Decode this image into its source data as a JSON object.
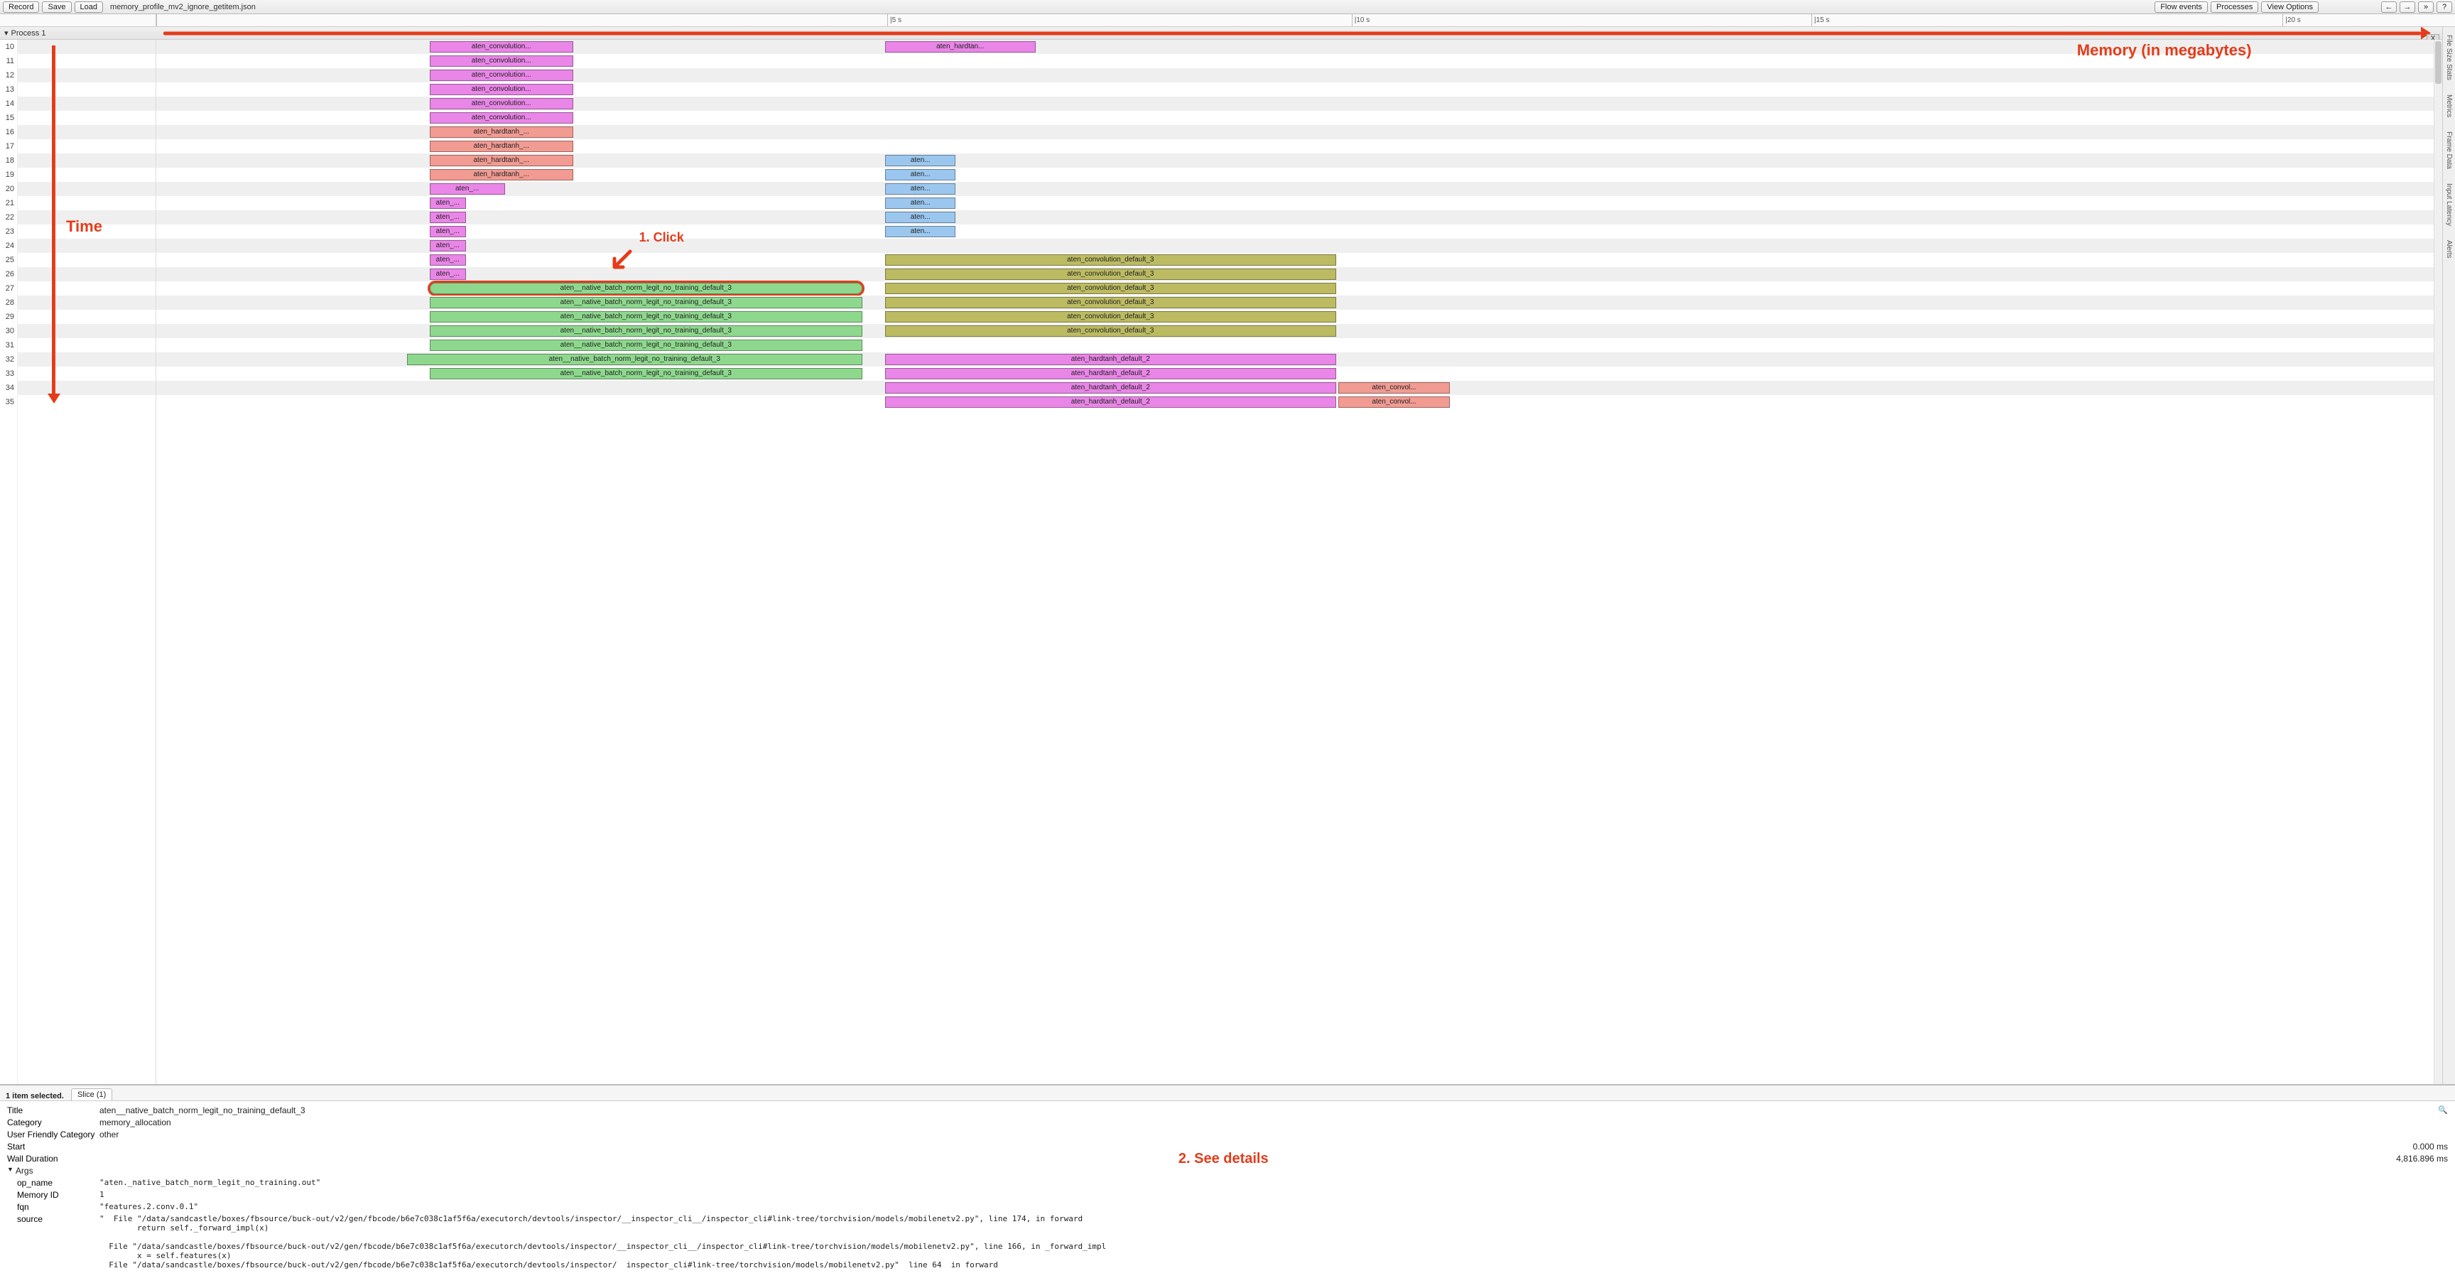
{
  "colors": {
    "magenta": "#e986e7",
    "salmon": "#f19b93",
    "olive": "#bcbb62",
    "green": "#8ed88e",
    "blue": "#9bc7ef",
    "pink": "#f49acb",
    "annotation": "#e43c1a",
    "row_shade": "#efefef",
    "border": "#999999"
  },
  "topbar": {
    "record": "Record",
    "save": "Save",
    "load": "Load",
    "filename": "memory_profile_mv2_ignore_getitem.json",
    "flow_events": "Flow events",
    "processes": "Processes",
    "view_options": "View Options",
    "nav_left": "←",
    "nav_right": "→",
    "nav_more": "»",
    "help": "?"
  },
  "ruler": {
    "ticks": [
      {
        "label": "",
        "pct": 0
      },
      {
        "label": "|5 s",
        "pct": 31.8
      },
      {
        "label": "|10 s",
        "pct": 52.0
      },
      {
        "label": "|15 s",
        "pct": 72.0
      },
      {
        "label": "|20 s",
        "pct": 92.5
      }
    ]
  },
  "process_header": {
    "label": "Process 1",
    "close": "X",
    "collapse_glyph": "▾"
  },
  "side_tabs": [
    "File Size Stats",
    "Metrics",
    "Frame Data",
    "Input Latency",
    "Alerts"
  ],
  "annotations": {
    "memory_label": "Memory (in megabytes)",
    "time_label": "Time",
    "click_label": "1. Click",
    "details_label": "2. See details"
  },
  "line_start": 10,
  "rows": [
    {
      "n": 10,
      "blocks": [
        {
          "l": "aten_convolution...",
          "c": "magenta",
          "x": 12.0,
          "w": 6.3
        },
        {
          "l": "aten_hardtan...",
          "c": "magenta",
          "x": 32.0,
          "w": 6.6
        }
      ]
    },
    {
      "n": 11,
      "blocks": [
        {
          "l": "aten_convolution...",
          "c": "magenta",
          "x": 12.0,
          "w": 6.3
        }
      ]
    },
    {
      "n": 12,
      "blocks": [
        {
          "l": "aten_convolution...",
          "c": "magenta",
          "x": 12.0,
          "w": 6.3
        }
      ]
    },
    {
      "n": 13,
      "blocks": [
        {
          "l": "aten_convolution...",
          "c": "magenta",
          "x": 12.0,
          "w": 6.3
        }
      ]
    },
    {
      "n": 14,
      "blocks": [
        {
          "l": "aten_convolution...",
          "c": "magenta",
          "x": 12.0,
          "w": 6.3
        }
      ]
    },
    {
      "n": 15,
      "blocks": [
        {
          "l": "aten_convolution...",
          "c": "magenta",
          "x": 12.0,
          "w": 6.3
        }
      ]
    },
    {
      "n": 16,
      "blocks": [
        {
          "l": "aten_hardtanh_...",
          "c": "salmon",
          "x": 12.0,
          "w": 6.3
        }
      ]
    },
    {
      "n": 17,
      "blocks": [
        {
          "l": "aten_hardtanh_...",
          "c": "salmon",
          "x": 12.0,
          "w": 6.3
        }
      ]
    },
    {
      "n": 18,
      "blocks": [
        {
          "l": "aten_hardtanh_...",
          "c": "salmon",
          "x": 12.0,
          "w": 6.3
        },
        {
          "l": "aten...",
          "c": "blue",
          "x": 32.0,
          "w": 3.1
        }
      ]
    },
    {
      "n": 19,
      "blocks": [
        {
          "l": "aten_hardtanh_...",
          "c": "salmon",
          "x": 12.0,
          "w": 6.3
        },
        {
          "l": "aten...",
          "c": "blue",
          "x": 32.0,
          "w": 3.1
        }
      ]
    },
    {
      "n": 20,
      "blocks": [
        {
          "l": "aten_...",
          "c": "magenta",
          "x": 12.0,
          "w": 3.3
        },
        {
          "l": "aten...",
          "c": "blue",
          "x": 32.0,
          "w": 3.1
        }
      ]
    },
    {
      "n": 21,
      "blocks": [
        {
          "l": "aten_...",
          "c": "magenta",
          "x": 12.0,
          "w": 1.6
        },
        {
          "l": "aten...",
          "c": "blue",
          "x": 32.0,
          "w": 3.1
        }
      ]
    },
    {
      "n": 22,
      "blocks": [
        {
          "l": "aten_...",
          "c": "magenta",
          "x": 12.0,
          "w": 1.6
        },
        {
          "l": "aten...",
          "c": "blue",
          "x": 32.0,
          "w": 3.1
        }
      ]
    },
    {
      "n": 23,
      "blocks": [
        {
          "l": "aten_...",
          "c": "magenta",
          "x": 12.0,
          "w": 1.6
        },
        {
          "l": "aten...",
          "c": "blue",
          "x": 32.0,
          "w": 3.1
        }
      ]
    },
    {
      "n": 24,
      "blocks": [
        {
          "l": "aten_...",
          "c": "magenta",
          "x": 12.0,
          "w": 1.6
        }
      ]
    },
    {
      "n": 25,
      "blocks": [
        {
          "l": "aten_...",
          "c": "magenta",
          "x": 12.0,
          "w": 1.6
        },
        {
          "l": "aten_convolution_default_3",
          "c": "olive",
          "x": 32.0,
          "w": 19.8
        }
      ]
    },
    {
      "n": 26,
      "blocks": [
        {
          "l": "aten_...",
          "c": "magenta",
          "x": 12.0,
          "w": 1.6
        },
        {
          "l": "aten_convolution_default_3",
          "c": "olive",
          "x": 32.0,
          "w": 19.8
        }
      ]
    },
    {
      "n": 27,
      "blocks": [
        {
          "l": "aten__native_batch_norm_legit_no_training_default_3",
          "c": "green",
          "x": 12.0,
          "w": 19.0,
          "highlight": true
        },
        {
          "l": "aten_convolution_default_3",
          "c": "olive",
          "x": 32.0,
          "w": 19.8
        }
      ]
    },
    {
      "n": 28,
      "blocks": [
        {
          "l": "aten__native_batch_norm_legit_no_training_default_3",
          "c": "green",
          "x": 12.0,
          "w": 19.0
        },
        {
          "l": "aten_convolution_default_3",
          "c": "olive",
          "x": 32.0,
          "w": 19.8
        }
      ]
    },
    {
      "n": 29,
      "blocks": [
        {
          "l": "aten__native_batch_norm_legit_no_training_default_3",
          "c": "green",
          "x": 12.0,
          "w": 19.0
        },
        {
          "l": "aten_convolution_default_3",
          "c": "olive",
          "x": 32.0,
          "w": 19.8
        }
      ]
    },
    {
      "n": 30,
      "blocks": [
        {
          "l": "aten__native_batch_norm_legit_no_training_default_3",
          "c": "green",
          "x": 12.0,
          "w": 19.0
        },
        {
          "l": "aten_convolution_default_3",
          "c": "olive",
          "x": 32.0,
          "w": 19.8
        }
      ]
    },
    {
      "n": 31,
      "blocks": [
        {
          "l": "aten__native_batch_norm_legit_no_training_default_3",
          "c": "green",
          "x": 12.0,
          "w": 19.0
        }
      ]
    },
    {
      "n": 32,
      "blocks": [
        {
          "l": "aten__native_batch_norm_legit_no_training_default_3",
          "c": "green",
          "x": 11.0,
          "w": 20.0
        },
        {
          "l": "aten_hardtanh_default_2",
          "c": "magenta",
          "x": 32.0,
          "w": 19.8
        }
      ]
    },
    {
      "n": 33,
      "blocks": [
        {
          "l": "aten__native_batch_norm_legit_no_training_default_3",
          "c": "green",
          "x": 12.0,
          "w": 19.0
        },
        {
          "l": "aten_hardtanh_default_2",
          "c": "magenta",
          "x": 32.0,
          "w": 19.8
        }
      ]
    },
    {
      "n": 34,
      "blocks": [
        {
          "l": "aten_hardtanh_default_2",
          "c": "magenta",
          "x": 32.0,
          "w": 19.8
        },
        {
          "l": "aten_convol...",
          "c": "salmon",
          "x": 51.9,
          "w": 4.9
        }
      ]
    },
    {
      "n": 35,
      "blocks": [
        {
          "l": "aten_hardtanh_default_2",
          "c": "magenta",
          "x": 32.0,
          "w": 19.8
        },
        {
          "l": "aten_convol...",
          "c": "salmon",
          "x": 51.9,
          "w": 4.9
        }
      ]
    }
  ],
  "details": {
    "selected_info": "1 item selected.",
    "tab_label": "Slice (1)",
    "fields": {
      "title_k": "Title",
      "title_v": "aten__native_batch_norm_legit_no_training_default_3",
      "category_k": "Category",
      "category_v": "memory_allocation",
      "ufc_k": "User Friendly Category",
      "ufc_v": "other",
      "start_k": "Start",
      "start_v": "0.000 ms",
      "wall_k": "Wall Duration",
      "wall_v": "4,816.896 ms",
      "args_k": "Args"
    },
    "args": {
      "op_name_k": "op_name",
      "op_name_v": "\"aten._native_batch_norm_legit_no_training.out\"",
      "memid_k": "Memory ID",
      "memid_v": "1",
      "fqn_k": "fqn",
      "fqn_v": "\"features.2.conv.0.1\"",
      "source_k": "source",
      "source_v": "\"  File \"/data/sandcastle/boxes/fbsource/buck-out/v2/gen/fbcode/b6e7c038c1af5f6a/executorch/devtools/inspector/__inspector_cli__/inspector_cli#link-tree/torchvision/models/mobilenetv2.py\", line 174, in forward\n        return self._forward_impl(x)\n\n  File \"/data/sandcastle/boxes/fbsource/buck-out/v2/gen/fbcode/b6e7c038c1af5f6a/executorch/devtools/inspector/__inspector_cli__/inspector_cli#link-tree/torchvision/models/mobilenetv2.py\", line 166, in _forward_impl\n        x = self.features(x)\n  File \"/data/sandcastle/boxes/fbsource/buck-out/v2/gen/fbcode/b6e7c038c1af5f6a/executorch/devtools/inspector/  inspector_cli#link-tree/torchvision/models/mobilenetv2.py\"  line 64  in forward"
    }
  }
}
